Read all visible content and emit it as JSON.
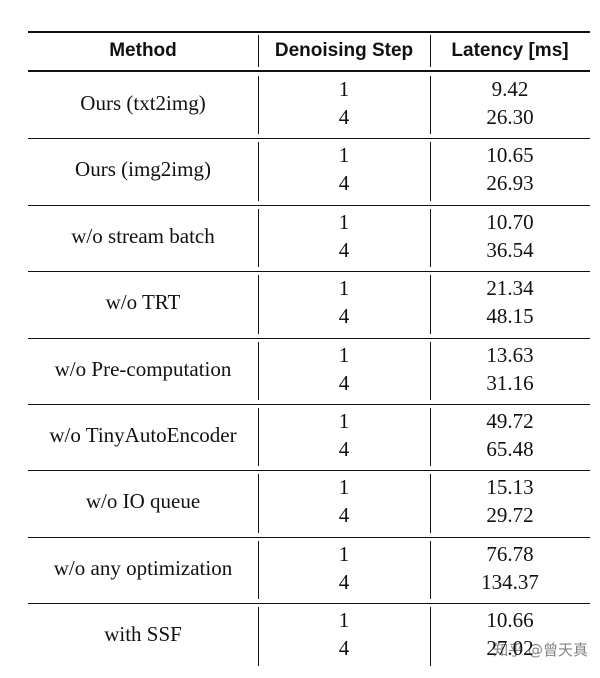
{
  "table": {
    "header": [
      "Method",
      "Denoising Step",
      "Latency [ms]"
    ],
    "rows": [
      {
        "method": "Ours (txt2img)",
        "steps": [
          "1",
          "4"
        ],
        "latency": [
          "9.42",
          "26.30"
        ]
      },
      {
        "method": "Ours (img2img)",
        "steps": [
          "1",
          "4"
        ],
        "latency": [
          "10.65",
          "26.93"
        ]
      },
      {
        "method": "w/o stream batch",
        "steps": [
          "1",
          "4"
        ],
        "latency": [
          "10.70",
          "36.54"
        ]
      },
      {
        "method": "w/o TRT",
        "steps": [
          "1",
          "4"
        ],
        "latency": [
          "21.34",
          "48.15"
        ]
      },
      {
        "method": "w/o Pre-computation",
        "steps": [
          "1",
          "4"
        ],
        "latency": [
          "13.63",
          "31.16"
        ]
      },
      {
        "method": "w/o TinyAutoEncoder",
        "steps": [
          "1",
          "4"
        ],
        "latency": [
          "49.72",
          "65.48"
        ]
      },
      {
        "method": "w/o IO queue",
        "steps": [
          "1",
          "4"
        ],
        "latency": [
          "15.13",
          "29.72"
        ]
      },
      {
        "method": "w/o any optimization",
        "steps": [
          "1",
          "4"
        ],
        "latency": [
          "76.78",
          "134.37"
        ]
      },
      {
        "method": "with SSF",
        "steps": [
          "1",
          "4"
        ],
        "latency": [
          "10.66",
          "27.02"
        ]
      }
    ]
  },
  "watermark": "知乎 @曾天真"
}
